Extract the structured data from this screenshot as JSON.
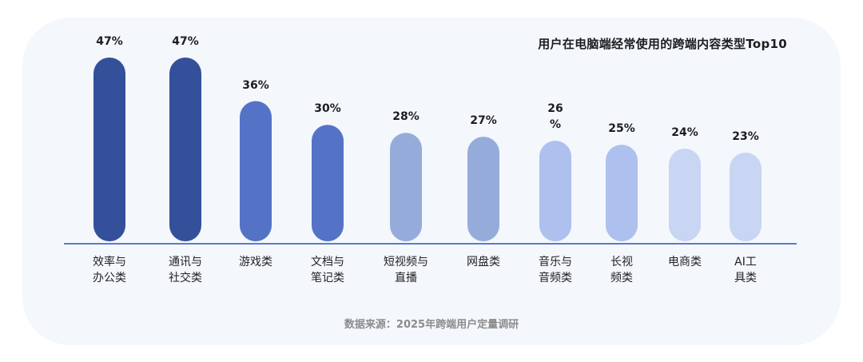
{
  "chart_data": {
    "type": "bar",
    "title": "用户在电脑端经常使用的跨端内容类型Top10",
    "categories": [
      "效率与\n办公类",
      "通讯与\n社交类",
      "游戏类",
      "文档与\n笔记类",
      "短视频与\n直播",
      "网盘类",
      "音乐与\n音频类",
      "长视\n频类",
      "电商类",
      "AI工\n具类"
    ],
    "values": [
      47,
      47,
      36,
      30,
      28,
      27,
      26,
      25,
      24,
      23
    ],
    "value_labels": [
      "47%",
      "47%",
      "36%",
      "30%",
      "28%",
      "27%",
      "26\n%",
      "25%",
      "24%",
      "23%"
    ],
    "colors": [
      "#34509a",
      "#34509a",
      "#5573c6",
      "#5573c6",
      "#95acdb",
      "#95acdb",
      "#adc0ee",
      "#adc0ee",
      "#c8d5f3",
      "#c8d5f3"
    ],
    "axis_color": "#5b7ac9",
    "ylim": [
      0,
      50
    ],
    "grid": false,
    "legend": "none",
    "xlabel": "",
    "ylabel": ""
  },
  "footer": {
    "source": "数据来源：2025年跨端用户定量调研"
  }
}
